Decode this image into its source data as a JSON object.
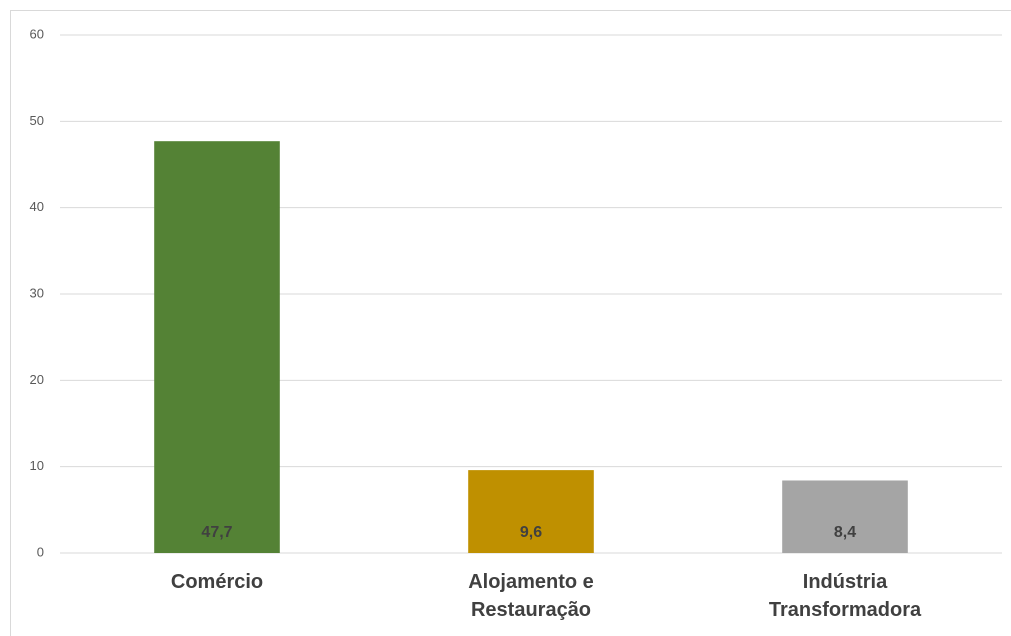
{
  "chart_data": {
    "type": "bar",
    "categories": [
      "Comércio",
      "Alojamento e Restauração",
      "Indústria Transformadora"
    ],
    "values": [
      47.7,
      9.6,
      8.4
    ],
    "value_labels": [
      "47,7",
      "9,6",
      "8,4"
    ],
    "colors": [
      "#548235",
      "#bf9000",
      "#a5a5a5"
    ],
    "ylim": [
      0,
      60
    ],
    "yticks": [
      0,
      10,
      20,
      30,
      40,
      50,
      60
    ],
    "grid": true
  }
}
